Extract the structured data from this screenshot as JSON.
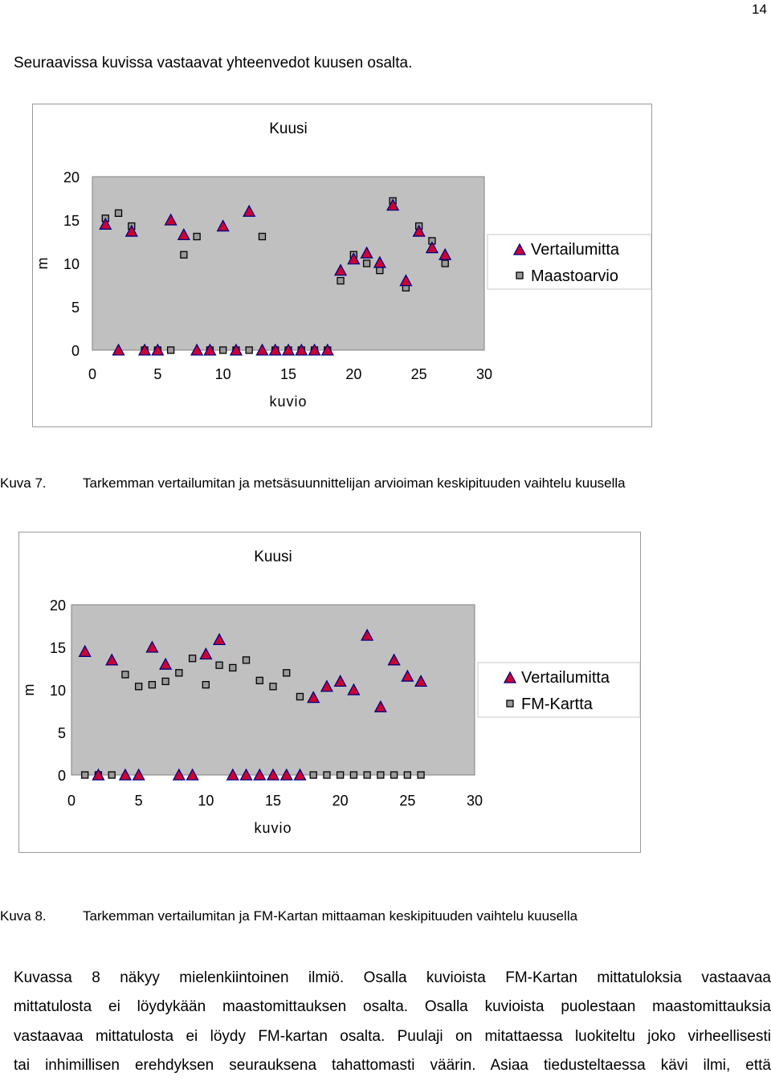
{
  "page_number": "14",
  "intro": "Seuraavissa kuvissa vastaavat yhteenvedot kuusen osalta.",
  "figures": [
    {
      "caption_num": "Kuva 7.",
      "caption_text": "Tarkemman vertailumitan ja metsäsuunnittelijan arvioiman keskipituuden vaihtelu kuusella"
    },
    {
      "caption_num": "Kuva 8.",
      "caption_text": "Tarkemman vertailumitan ja FM-Kartan mittaaman keskipituuden vaihtelu kuusella"
    }
  ],
  "body_lines": [
    "Kuvassa 8 näkyy mielenkiintoinen ilmiö. Osalla kuvioista FM-Kartan mittatuloksia vastaavaa",
    "mittatulosta ei löydykään maastomittauksen osalta. Osalla kuvioista puolestaan maastomittauksia",
    "vastaavaa mittatulosta ei löydy FM-kartan osalta. Puulaji on mitattaessa luokiteltu joko virheellisesti",
    "tai inhimillisen erehdyksen seurauksena tahattomasti väärin. Asiaa tiedusteltaessa kävi ilmi, että"
  ],
  "colors": {
    "plot_bg": "#c0c0c0",
    "triangle_fill": "#cc0033",
    "triangle_stroke": "#000080",
    "square_fill": "#9a9a9a",
    "square_stroke": "#000000"
  },
  "chart_data": [
    {
      "type": "scatter",
      "title": "Kuusi",
      "xlabel": "kuvio",
      "ylabel": "m",
      "xlim": [
        0,
        30
      ],
      "ylim": [
        0,
        20
      ],
      "x_ticks": [
        "0",
        "5",
        "10",
        "15",
        "20",
        "25",
        "30"
      ],
      "y_ticks": [
        "0",
        "5",
        "10",
        "15",
        "20"
      ],
      "legend_position": "right",
      "series": [
        {
          "name": "Vertailumitta",
          "marker": "triangle",
          "points": [
            [
              1,
              14.5
            ],
            [
              2,
              0
            ],
            [
              3,
              13.7
            ],
            [
              4,
              0
            ],
            [
              5,
              0
            ],
            [
              6,
              15
            ],
            [
              7,
              13.3
            ],
            [
              8,
              0
            ],
            [
              9,
              0
            ],
            [
              10,
              14.3
            ],
            [
              11,
              0
            ],
            [
              12,
              16
            ],
            [
              13,
              0
            ],
            [
              14,
              0
            ],
            [
              15,
              0
            ],
            [
              16,
              0
            ],
            [
              17,
              0
            ],
            [
              18,
              0
            ],
            [
              19,
              9.2
            ],
            [
              20,
              10.5
            ],
            [
              21,
              11.2
            ],
            [
              22,
              10.1
            ],
            [
              23,
              16.7
            ],
            [
              24,
              8
            ],
            [
              25,
              13.7
            ],
            [
              26,
              11.8
            ],
            [
              27,
              11
            ]
          ]
        },
        {
          "name": "Maastoarvio",
          "marker": "square",
          "points": [
            [
              1,
              15.2
            ],
            [
              2,
              15.8
            ],
            [
              3,
              14.3
            ],
            [
              4,
              0
            ],
            [
              5,
              0
            ],
            [
              6,
              0
            ],
            [
              7,
              11
            ],
            [
              8,
              13.1
            ],
            [
              9,
              0
            ],
            [
              10,
              0
            ],
            [
              11,
              0
            ],
            [
              12,
              0
            ],
            [
              13,
              13.1
            ],
            [
              14,
              0
            ],
            [
              15,
              0
            ],
            [
              16,
              0
            ],
            [
              17,
              0
            ],
            [
              18,
              0
            ],
            [
              19,
              8
            ],
            [
              20,
              11
            ],
            [
              21,
              10
            ],
            [
              22,
              9.2
            ],
            [
              23,
              17.2
            ],
            [
              24,
              7.2
            ],
            [
              25,
              14.3
            ],
            [
              26,
              12.6
            ],
            [
              27,
              10
            ]
          ]
        }
      ]
    },
    {
      "type": "scatter",
      "title": "Kuusi",
      "xlabel": "kuvio",
      "ylabel": "m",
      "xlim": [
        0,
        30
      ],
      "ylim": [
        0,
        20
      ],
      "x_ticks": [
        "0",
        "5",
        "10",
        "15",
        "20",
        "25",
        "30"
      ],
      "y_ticks": [
        "0",
        "5",
        "10",
        "15",
        "20"
      ],
      "legend_position": "right",
      "series": [
        {
          "name": "Vertailumitta",
          "marker": "triangle",
          "points": [
            [
              1,
              14.5
            ],
            [
              2,
              0
            ],
            [
              3,
              13.5
            ],
            [
              4,
              0
            ],
            [
              5,
              0
            ],
            [
              6,
              15
            ],
            [
              7,
              13
            ],
            [
              8,
              0
            ],
            [
              9,
              0
            ],
            [
              10,
              14.2
            ],
            [
              11,
              15.9
            ],
            [
              12,
              0
            ],
            [
              13,
              0
            ],
            [
              14,
              0
            ],
            [
              15,
              0
            ],
            [
              16,
              0
            ],
            [
              17,
              0
            ],
            [
              18,
              9.1
            ],
            [
              19,
              10.4
            ],
            [
              20,
              11
            ],
            [
              21,
              10
            ],
            [
              22,
              16.4
            ],
            [
              23,
              8
            ],
            [
              24,
              13.5
            ],
            [
              25,
              11.6
            ],
            [
              26,
              11
            ]
          ]
        },
        {
          "name": "FM-Kartta",
          "marker": "square",
          "points": [
            [
              1,
              0
            ],
            [
              2,
              0
            ],
            [
              3,
              0
            ],
            [
              4,
              11.8
            ],
            [
              5,
              10.4
            ],
            [
              6,
              10.6
            ],
            [
              7,
              11
            ],
            [
              8,
              12
            ],
            [
              9,
              13.7
            ],
            [
              10,
              10.6
            ],
            [
              11,
              12.9
            ],
            [
              12,
              12.6
            ],
            [
              13,
              13.5
            ],
            [
              14,
              11.1
            ],
            [
              15,
              10.4
            ],
            [
              16,
              12
            ],
            [
              17,
              9.2
            ],
            [
              18,
              0
            ],
            [
              19,
              0
            ],
            [
              20,
              0
            ],
            [
              21,
              0
            ],
            [
              22,
              0
            ],
            [
              23,
              0
            ],
            [
              24,
              0
            ],
            [
              25,
              0
            ],
            [
              26,
              0
            ]
          ]
        }
      ]
    }
  ]
}
